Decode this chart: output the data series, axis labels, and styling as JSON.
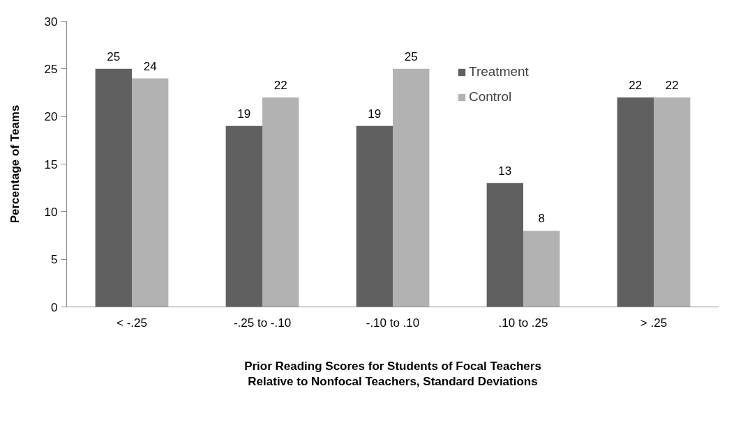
{
  "chart_data": {
    "type": "bar",
    "xlabel": "Prior Reading Scores for Students of Focal Teachers\nRelative to Nonfocal Teachers, Standard Deviations",
    "ylabel": "Percentage of Teams",
    "categories": [
      "< -.25",
      "-.25 to -.10",
      "-.10 to .10",
      ".10 to .25",
      "> .25"
    ],
    "series": [
      {
        "name": "Treatment",
        "color": "#606060",
        "values": [
          25,
          19,
          19,
          13,
          22
        ]
      },
      {
        "name": "Control",
        "color": "#b2b2b2",
        "values": [
          24,
          22,
          25,
          8,
          22
        ]
      }
    ],
    "ylim": [
      0,
      30
    ],
    "yticks": [
      0,
      5,
      10,
      15,
      20,
      25,
      30
    ],
    "data_labels": true,
    "legend": "top right",
    "grid": false
  }
}
